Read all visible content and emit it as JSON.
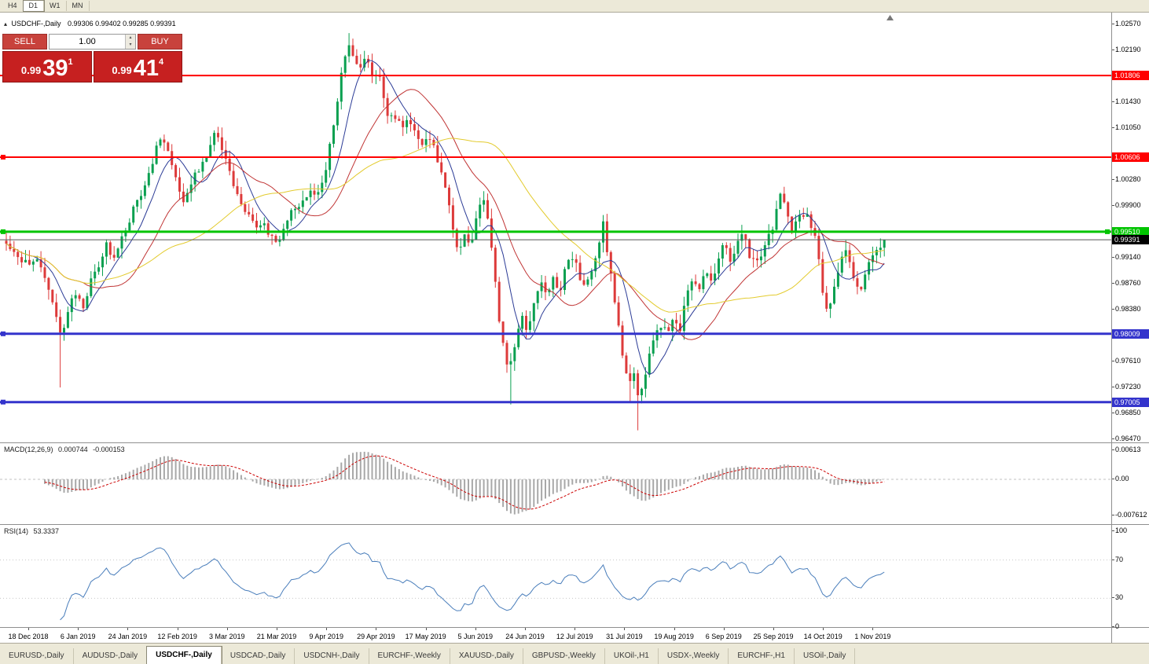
{
  "toolbar": {
    "timeframes": [
      "H4",
      "D1",
      "W1",
      "MN"
    ],
    "active_timeframe": "D1"
  },
  "chart_header": {
    "collapse_icon": "▴",
    "symbol": "USDCHF-,Daily",
    "ohlc": "0.99306 0.99402 0.99285 0.99391"
  },
  "trade_panel": {
    "sell_label": "SELL",
    "buy_label": "BUY",
    "volume": "1.00",
    "sell_price": {
      "prefix": "0.99",
      "big": "39",
      "sup": "1"
    },
    "buy_price": {
      "prefix": "0.99",
      "big": "41",
      "sup": "4"
    }
  },
  "price_axis": {
    "ticks": [
      "1.02570",
      "1.02190",
      "1.01430",
      "1.01050",
      "1.00280",
      "0.99900",
      "0.99140",
      "0.98760",
      "0.98380",
      "0.97610",
      "0.97230",
      "0.96850",
      "0.96470"
    ]
  },
  "macd_panel": {
    "name": "MACD(12,26,9)",
    "main": "0.000744",
    "signal": "-0.000153",
    "axis": [
      {
        "label": "0.00613",
        "value": 0.00613
      },
      {
        "label": "0.00",
        "value": 0
      },
      {
        "label": "-0.007612",
        "value": -0.007612
      }
    ]
  },
  "rsi_panel": {
    "name": "RSI(14)",
    "value": "53.3337",
    "axis": [
      {
        "label": "100",
        "value": 100
      },
      {
        "label": "70",
        "value": 70
      },
      {
        "label": "30",
        "value": 30
      },
      {
        "label": "0",
        "value": 0
      }
    ]
  },
  "date_axis": {
    "labels": [
      "18 Dec 2018",
      "6 Jan 2019",
      "24 Jan 2019",
      "12 Feb 2019",
      "3 Mar 2019",
      "21 Mar 2019",
      "9 Apr 2019",
      "29 Apr 2019",
      "17 May 2019",
      "5 Jun 2019",
      "24 Jun 2019",
      "12 Jul 2019",
      "31 Jul 2019",
      "19 Aug 2019",
      "6 Sep 2019",
      "25 Sep 2019",
      "14 Oct 2019",
      "1 Nov 2019"
    ]
  },
  "tabs": [
    {
      "label": "EURUSD-,Daily",
      "active": false
    },
    {
      "label": "AUDUSD-,Daily",
      "active": false
    },
    {
      "label": "USDCHF-,Daily",
      "active": true
    },
    {
      "label": "USDCAD-,Daily",
      "active": false
    },
    {
      "label": "USDCNH-,Daily",
      "active": false
    },
    {
      "label": "EURCHF-,Weekly",
      "active": false
    },
    {
      "label": "XAUUSD-,Daily",
      "active": false
    },
    {
      "label": "GBPUSD-,Weekly",
      "active": false
    },
    {
      "label": "UKOil-,H1",
      "active": false
    },
    {
      "label": "USDX-,Weekly",
      "active": false
    },
    {
      "label": "EURCHF-,H1",
      "active": false
    },
    {
      "label": "USOil-,Daily",
      "active": false
    }
  ],
  "theme": {
    "line_red": "#FF0000",
    "line_green": "#00C400",
    "line_blue": "#3434CC",
    "current_price_badge": "#000000",
    "sell_buy_button_red": "#C8423C",
    "price_box_red": "#C62020",
    "toolbar_bg": "#ECE9D8"
  },
  "chart_data": {
    "type": "candlestick",
    "symbol": "USDCHF",
    "timeframe": "Daily",
    "ylim": [
      0.9647,
      1.0257
    ],
    "last_close": 0.99391,
    "last_close_label": "0.99391",
    "first_candle_x": 8,
    "last_candle_x": 1130,
    "candle_spacing_px": 4.9,
    "colors": {
      "up": "#0AA050",
      "down": "#DD3A3A",
      "current_price_line": "#555555",
      "macd_histogram": "#A8A8A8",
      "macd_signal": "#CC0000",
      "rsi_line": "#4A7EBB"
    },
    "moving_averages": [
      {
        "period": 8,
        "color": "#2B3B96"
      },
      {
        "period": 21,
        "color": "#C03434"
      },
      {
        "period": 45,
        "color": "#E3CB2E"
      }
    ],
    "hlines": [
      {
        "price": 1.01806,
        "label": "1.01806",
        "color": "#FF0000",
        "thickness": 2,
        "handles": "none"
      },
      {
        "price": 1.00606,
        "label": "1.00606",
        "color": "#FF0000",
        "thickness": 2,
        "handles": "left"
      },
      {
        "price": 0.9951,
        "label": "0.99510",
        "color": "#00C400",
        "thickness": 3,
        "handles": "both"
      },
      {
        "price": 0.98009,
        "label": "0.98009",
        "color": "#3434CC",
        "thickness": 3,
        "handles": "left"
      },
      {
        "price": 0.97005,
        "label": "0.97005",
        "color": "#3434CC",
        "thickness": 3,
        "handles": "left"
      }
    ],
    "price_path_anchors": {
      "x": [
        8,
        20,
        35,
        50,
        60,
        70,
        78,
        85,
        95,
        105,
        115,
        125,
        135,
        145,
        155,
        165,
        175,
        185,
        195,
        202,
        210,
        218,
        226,
        234,
        242,
        252,
        262,
        272,
        280,
        288,
        296,
        306,
        316,
        326,
        336,
        344,
        352,
        360,
        368,
        378,
        388,
        396,
        404,
        412,
        420,
        428,
        436,
        443,
        450,
        457,
        464,
        472,
        480,
        488,
        496,
        504,
        512,
        520,
        528,
        536,
        544,
        552,
        560,
        568,
        576,
        584,
        592,
        600,
        608,
        616,
        624,
        632,
        640,
        648,
        656,
        664,
        672,
        680,
        688,
        696,
        704,
        712,
        720,
        728,
        736,
        744,
        752,
        760,
        768,
        776,
        784,
        792,
        800,
        806,
        812,
        818,
        826,
        834,
        842,
        850,
        858,
        866,
        874,
        882,
        890,
        898,
        906,
        914,
        922,
        930,
        938,
        946,
        954,
        962,
        970,
        978,
        986,
        994,
        1000,
        1008,
        1016,
        1024,
        1032,
        1040,
        1048,
        1054,
        1062,
        1070,
        1078,
        1086,
        1094,
        1100,
        1108,
        1116,
        1124,
        1130
      ],
      "price": [
        0.9939,
        0.9922,
        0.9899,
        0.991,
        0.9864,
        0.9841,
        0.9795,
        0.983,
        0.9864,
        0.9841,
        0.9876,
        0.9899,
        0.9933,
        0.991,
        0.9945,
        0.9968,
        0.9997,
        1.0026,
        1.006,
        1.0089,
        1.0078,
        1.0049,
        1.0014,
        0.9997,
        1.002,
        1.0043,
        1.006,
        1.0095,
        1.0078,
        1.0055,
        1.0014,
        0.9991,
        0.9974,
        0.9957,
        0.9968,
        0.9945,
        0.9928,
        0.9951,
        0.9974,
        0.9985,
        1.0003,
        1.002,
        1.0003,
        1.0032,
        1.0078,
        1.0136,
        1.0194,
        1.0223,
        1.0205,
        1.0194,
        1.0211,
        1.0182,
        1.0187,
        1.0153,
        1.0113,
        1.0124,
        1.0107,
        1.0118,
        1.0101,
        1.0078,
        1.0095,
        1.0072,
        1.0043,
        1.0008,
        0.9957,
        0.9922,
        0.9951,
        0.9933,
        0.998,
        0.9997,
        0.9945,
        0.9853,
        0.9783,
        0.9749,
        0.9795,
        0.983,
        0.9806,
        0.9853,
        0.9882,
        0.9859,
        0.9887,
        0.9864,
        0.9899,
        0.9916,
        0.9893,
        0.9864,
        0.9887,
        0.9922,
        0.9963,
        0.9899,
        0.9841,
        0.9772,
        0.9726,
        0.9749,
        0.9703,
        0.9726,
        0.9766,
        0.9795,
        0.9812,
        0.9795,
        0.983,
        0.9806,
        0.9859,
        0.9882,
        0.9864,
        0.9899,
        0.9876,
        0.991,
        0.9933,
        0.991,
        0.9939,
        0.9957,
        0.9916,
        0.9899,
        0.9922,
        0.9945,
        0.9968,
        1.002,
        0.998,
        0.9951,
        0.9968,
        0.998,
        0.9957,
        0.9933,
        0.9853,
        0.9835,
        0.9876,
        0.9905,
        0.9922,
        0.9882,
        0.9859,
        0.9887,
        0.991,
        0.993,
        0.9922,
        0.9939
      ]
    },
    "wick_events": [
      {
        "x": 78,
        "low": 0.9722
      },
      {
        "x": 443,
        "high": 1.0243
      },
      {
        "x": 648,
        "low": 0.9697
      },
      {
        "x": 800,
        "low": 0.9701
      },
      {
        "x": 812,
        "low": 0.9659
      }
    ],
    "macd": {
      "fast": 12,
      "slow": 26,
      "signal": 9
    },
    "rsi": {
      "period": 14
    }
  }
}
